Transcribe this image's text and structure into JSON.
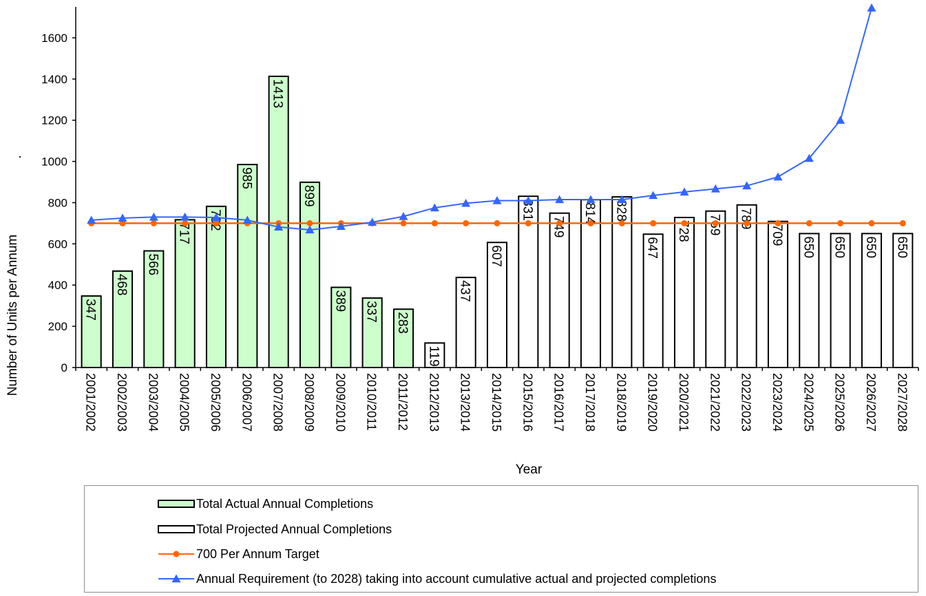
{
  "chart_data": {
    "type": "bar",
    "xlabel": "Year",
    "ylabel": "Number of Units per Annum",
    "ylim": [
      0,
      1750
    ],
    "yticks": [
      0,
      200,
      400,
      600,
      800,
      1000,
      1200,
      1400,
      1600
    ],
    "categories": [
      "2001/2002",
      "2002/2003",
      "2003/2004",
      "2004/2005",
      "2005/2006",
      "2006/2007",
      "2007/2008",
      "2008/2009",
      "2009/2010",
      "2010/2011",
      "2011/2012",
      "2012/2013",
      "2013/2014",
      "2014/2015",
      "2015/2016",
      "2016/2017",
      "2017/2018",
      "2018/2019",
      "2019/2020",
      "2020/2021",
      "2021/2022",
      "2022/2023",
      "2023/2024",
      "2024/2025",
      "2025/2026",
      "2026/2027",
      "2027/2028"
    ],
    "bars": [
      {
        "name": "Total Actual Annual Completions",
        "color": "#ccffcc",
        "values": [
          347,
          468,
          566,
          717,
          782,
          985,
          1413,
          899,
          389,
          337,
          283,
          null,
          null,
          null,
          null,
          null,
          null,
          null,
          null,
          null,
          null,
          null,
          null,
          null,
          null,
          null,
          null
        ]
      },
      {
        "name": "Total Projected Annual Completions",
        "color": "#ffffff",
        "values": [
          null,
          null,
          null,
          null,
          null,
          null,
          null,
          null,
          null,
          null,
          null,
          119,
          437,
          607,
          831,
          749,
          814,
          828,
          647,
          728,
          759,
          789,
          709,
          650,
          650,
          650,
          650
        ]
      }
    ],
    "bar_labels": [
      "347",
      "468",
      "566",
      "717",
      "782",
      "985",
      "1413",
      "899",
      "389",
      "337",
      "283",
      "119",
      "437",
      "607",
      "831",
      "749",
      "814",
      "828",
      "647",
      "728",
      "759",
      "789",
      "709",
      "650",
      "650",
      "650",
      "650"
    ],
    "lines": [
      {
        "name": "700 Per Annum Target",
        "color": "#ff6600",
        "marker": "circle",
        "values": [
          700,
          700,
          700,
          700,
          700,
          700,
          700,
          700,
          700,
          700,
          700,
          700,
          700,
          700,
          700,
          700,
          700,
          700,
          700,
          700,
          700,
          700,
          700,
          700,
          700,
          700,
          700
        ]
      },
      {
        "name": "Annual Requirement (to 2028) taking into account cumulative actual and projected completions",
        "color": "#3366ff",
        "marker": "triangle",
        "values": [
          715,
          725,
          730,
          730,
          728,
          715,
          682,
          668,
          685,
          705,
          733,
          775,
          797,
          810,
          810,
          815,
          815,
          815,
          835,
          852,
          867,
          882,
          925,
          1015,
          1200,
          1745,
          null
        ]
      }
    ],
    "legend": {
      "position": "bottom",
      "entries": [
        "Total Actual Annual Completions",
        "Total Projected Annual Completions",
        "700 Per Annum Target",
        "Annual Requirement (to 2028) taking into account cumulative actual and projected completions"
      ]
    },
    "stray_mark": "."
  }
}
